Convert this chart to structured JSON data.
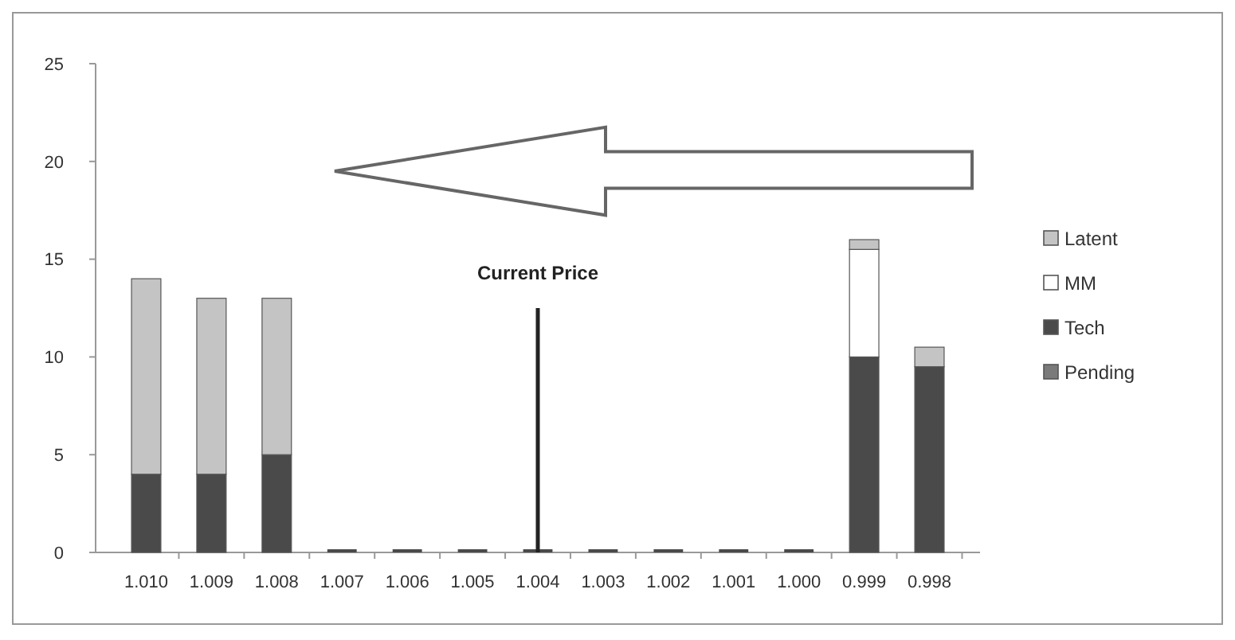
{
  "chart_data": {
    "type": "bar",
    "stacked": true,
    "categories": [
      "1.010",
      "1.009",
      "1.008",
      "1.007",
      "1.006",
      "1.005",
      "1.004",
      "1.003",
      "1.002",
      "1.001",
      "1.000",
      "0.999",
      "0.998"
    ],
    "series": [
      {
        "name": "Pending",
        "color": "#7a7a7a",
        "values": [
          0,
          0,
          0,
          0,
          0,
          0,
          0,
          0,
          0,
          0,
          0,
          0,
          0
        ]
      },
      {
        "name": "Tech",
        "color": "#4a4a4a",
        "values": [
          4,
          4,
          5,
          0,
          0,
          0,
          0,
          0,
          0,
          0,
          0,
          10,
          9.5
        ]
      },
      {
        "name": "MM",
        "color": "#ffffff",
        "values": [
          0,
          0,
          0,
          0,
          0,
          0,
          0,
          0,
          0,
          0,
          0,
          5.5,
          0
        ]
      },
      {
        "name": "Latent",
        "color": "#c4c4c4",
        "values": [
          10,
          9,
          8,
          0,
          0,
          0,
          0,
          0,
          0,
          0,
          0,
          0.5,
          1
        ]
      }
    ],
    "ylim": [
      0,
      25
    ],
    "yticks": [
      0,
      5,
      10,
      15,
      20,
      25
    ],
    "grid": false,
    "legend": "right",
    "ref_lines": [
      {
        "axis": "x",
        "value": "1.004",
        "label": "Current Price",
        "color": "#222222"
      }
    ]
  }
}
